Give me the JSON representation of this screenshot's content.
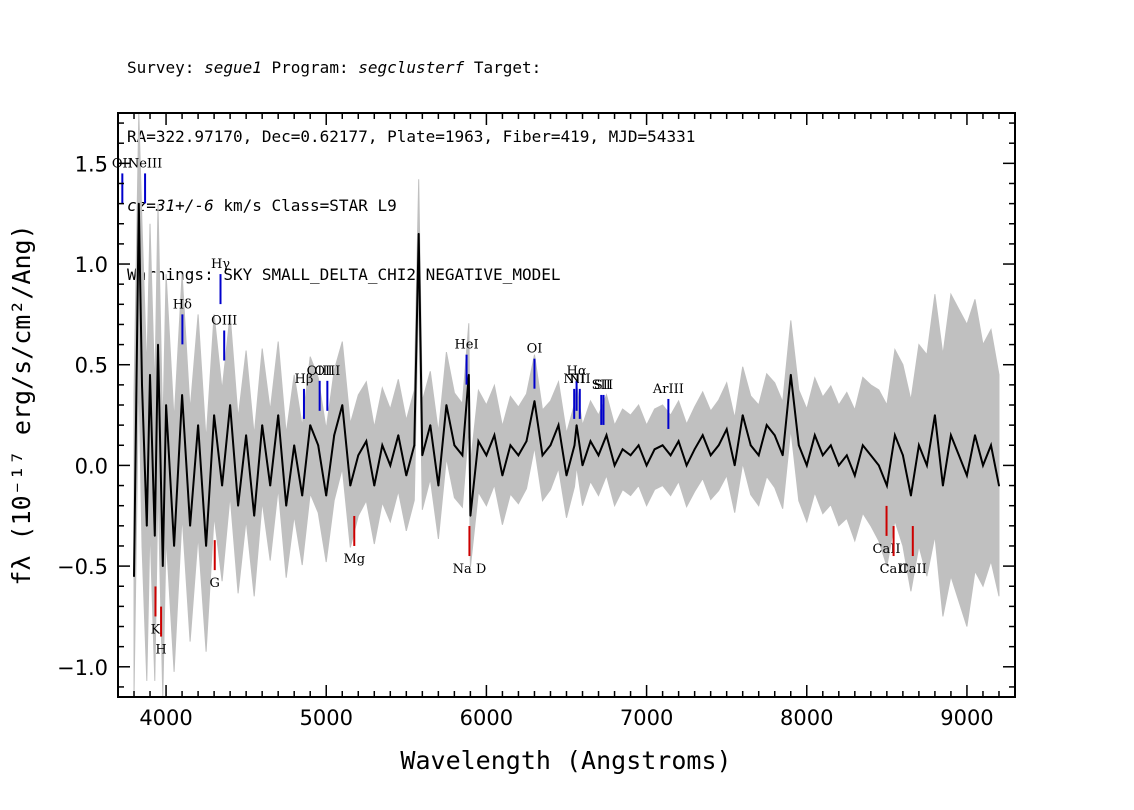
{
  "header": {
    "survey_label": "Survey:",
    "survey": "segue1",
    "program_label": "Program:",
    "program": "segclusterf",
    "target_label": "Target:",
    "line2": "RA=322.97170, Dec=0.62177, Plate=1963, Fiber=419, MJD=54331",
    "cz": "cz=31+/-6",
    "cz_rest": " km/s Class=STAR L9",
    "warnings": "Warnings: SKY SMALL_DELTA_CHI2 NEGATIVE_MODEL"
  },
  "chart_data": {
    "type": "line",
    "title": "",
    "xlabel": "Wavelength (Angstroms)",
    "ylabel": "fλ (10⁻¹⁷ erg/s/cm²/Ang)",
    "xlim": [
      3700,
      9300
    ],
    "ylim": [
      -1.15,
      1.75
    ],
    "x_ticks": [
      4000,
      5000,
      6000,
      7000,
      8000,
      9000
    ],
    "y_ticks": [
      -1.0,
      -0.5,
      0.0,
      0.5,
      1.0,
      1.5
    ],
    "x_tick_labels": [
      "4000",
      "5000",
      "6000",
      "7000",
      "8000",
      "9000"
    ],
    "y_tick_labels": [
      "−1.0",
      "−0.5",
      "0.0",
      "0.5",
      "1.0",
      "1.5"
    ],
    "grid": false,
    "series": [
      {
        "color": "#000000",
        "x": [
          3800,
          3830,
          3850,
          3880,
          3900,
          3930,
          3950,
          3980,
          4000,
          4050,
          4100,
          4150,
          4200,
          4250,
          4300,
          4350,
          4400,
          4450,
          4500,
          4550,
          4600,
          4650,
          4700,
          4750,
          4800,
          4850,
          4900,
          4950,
          5000,
          5050,
          5100,
          5150,
          5200,
          5250,
          5300,
          5350,
          5400,
          5450,
          5500,
          5550,
          5577,
          5600,
          5650,
          5700,
          5750,
          5800,
          5850,
          5890,
          5900,
          5950,
          6000,
          6050,
          6100,
          6150,
          6200,
          6250,
          6300,
          6350,
          6400,
          6450,
          6500,
          6550,
          6563,
          6600,
          6650,
          6700,
          6750,
          6800,
          6850,
          6900,
          6950,
          7000,
          7050,
          7100,
          7150,
          7200,
          7250,
          7300,
          7350,
          7400,
          7450,
          7500,
          7550,
          7600,
          7650,
          7700,
          7750,
          7800,
          7850,
          7900,
          7950,
          8000,
          8050,
          8100,
          8150,
          8200,
          8250,
          8300,
          8350,
          8400,
          8450,
          8500,
          8550,
          8600,
          8650,
          8700,
          8750,
          8800,
          8850,
          8900,
          8950,
          9000,
          9050,
          9100,
          9150,
          9200
        ],
        "values": [
          -0.55,
          1.3,
          0.4,
          -0.3,
          0.45,
          -0.35,
          0.6,
          -0.5,
          0.3,
          -0.4,
          0.35,
          -0.3,
          0.2,
          -0.4,
          0.25,
          -0.1,
          0.3,
          -0.2,
          0.15,
          -0.25,
          0.2,
          -0.1,
          0.25,
          -0.2,
          0.1,
          -0.15,
          0.2,
          0.1,
          -0.15,
          0.15,
          0.3,
          -0.1,
          0.05,
          0.12,
          -0.1,
          0.1,
          0.0,
          0.15,
          -0.05,
          0.1,
          1.15,
          0.05,
          0.2,
          -0.1,
          0.3,
          0.1,
          0.05,
          0.45,
          -0.25,
          0.12,
          0.05,
          0.15,
          -0.05,
          0.1,
          0.05,
          0.12,
          0.32,
          0.05,
          0.1,
          0.2,
          -0.05,
          0.1,
          0.2,
          0.0,
          0.12,
          0.05,
          0.15,
          0.0,
          0.08,
          0.05,
          0.1,
          0.0,
          0.08,
          0.1,
          0.05,
          0.12,
          0.0,
          0.08,
          0.15,
          0.05,
          0.1,
          0.18,
          0.0,
          0.25,
          0.1,
          0.05,
          0.2,
          0.15,
          0.05,
          0.45,
          0.1,
          0.0,
          0.15,
          0.05,
          0.1,
          0.0,
          0.05,
          -0.05,
          0.1,
          0.05,
          0.0,
          -0.1,
          0.15,
          0.05,
          -0.15,
          0.1,
          0.0,
          0.25,
          -0.1,
          0.15,
          0.05,
          -0.05,
          0.15,
          0.0,
          0.1,
          -0.1
        ]
      },
      {
        "color": "#c0c0c0",
        "x": [
          3700,
          3800,
          3850,
          3900,
          3950,
          4000,
          4100,
          4200,
          4300,
          4400,
          4500,
          4600,
          4800,
          5000,
          5200,
          5400,
          5600,
          5800,
          6000,
          6200,
          6400,
          6600,
          6800,
          7000,
          7200,
          7400,
          7600,
          7800,
          8000,
          8200,
          8400,
          8500,
          8600,
          8700,
          8800,
          8900,
          9000,
          9100,
          9200
        ],
        "values": [
          0.7,
          0.9,
          0.8,
          0.75,
          0.7,
          0.65,
          0.6,
          0.55,
          0.5,
          0.45,
          0.42,
          0.38,
          0.35,
          0.33,
          0.3,
          0.28,
          0.27,
          0.26,
          0.25,
          0.24,
          0.22,
          0.2,
          0.2,
          0.2,
          0.2,
          0.22,
          0.24,
          0.26,
          0.28,
          0.3,
          0.35,
          0.4,
          0.45,
          0.5,
          0.6,
          0.7,
          0.75,
          0.6,
          0.55
        ]
      }
    ],
    "emission_lines": [
      {
        "label": "OII",
        "x": 3727,
        "y": 1.45
      },
      {
        "label": "NeIII",
        "x": 3869,
        "y": 1.45
      },
      {
        "label": "Hδ",
        "x": 4102,
        "y": 0.75
      },
      {
        "label": "Hγ",
        "x": 4340,
        "y": 0.95
      },
      {
        "label": "OIII",
        "x": 4363,
        "y": 0.67
      },
      {
        "label": "Hβ",
        "x": 4861,
        "y": 0.38
      },
      {
        "label": "OIII",
        "x": 4959,
        "y": 0.42
      },
      {
        "label": "OIII",
        "x": 5007,
        "y": 0.42
      },
      {
        "label": "HeI",
        "x": 5876,
        "y": 0.55
      },
      {
        "label": "OI",
        "x": 6300,
        "y": 0.53
      },
      {
        "label": "NII",
        "x": 6548,
        "y": 0.38
      },
      {
        "label": "Hα",
        "x": 6563,
        "y": 0.42
      },
      {
        "label": "NII",
        "x": 6583,
        "y": 0.38
      },
      {
        "label": "SII",
        "x": 6717,
        "y": 0.35
      },
      {
        "label": "SII",
        "x": 6731,
        "y": 0.35
      },
      {
        "label": "ArIII",
        "x": 7136,
        "y": 0.33
      }
    ],
    "absorption_lines": [
      {
        "label": "K",
        "x": 3934,
        "y": -0.75
      },
      {
        "label": "H",
        "x": 3969,
        "y": -0.85
      },
      {
        "label": "G",
        "x": 4304,
        "y": -0.52
      },
      {
        "label": "Mg",
        "x": 5175,
        "y": -0.4
      },
      {
        "label": "Na D",
        "x": 5894,
        "y": -0.45
      },
      {
        "label": "CaII",
        "x": 8498,
        "y": -0.35
      },
      {
        "label": "CaII",
        "x": 8542,
        "y": -0.45
      },
      {
        "label": "CaII",
        "x": 8662,
        "y": -0.45
      }
    ]
  }
}
